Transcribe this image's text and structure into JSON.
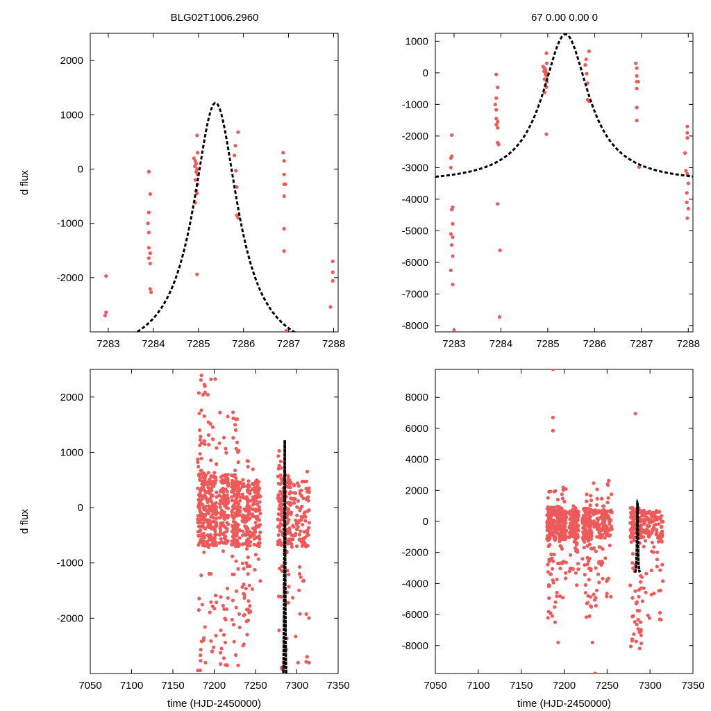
{
  "header": {
    "title_left": "BLG02T1006.2960",
    "title_right": "67  0.00  0.00  0"
  },
  "colors": {
    "data": "#ee5a5a",
    "model": "#000000",
    "frame": "#000000"
  },
  "chart_data": [
    {
      "id": "top-left",
      "type": "scatter",
      "xlabel": "",
      "ylabel": "d flux",
      "xlim": [
        7282.6,
        7288.1
      ],
      "ylim": [
        -3000,
        2500
      ],
      "xticks": [
        7283,
        7284,
        7285,
        7286,
        7287,
        7288
      ],
      "yticks": [
        -2000,
        -1000,
        0,
        1000,
        2000
      ],
      "points": [
        [
          7282.95,
          -1970
        ],
        [
          7282.95,
          -2640
        ],
        [
          7282.93,
          -2700
        ],
        [
          7283.9,
          -50
        ],
        [
          7283.93,
          -460
        ],
        [
          7283.9,
          -800
        ],
        [
          7283.88,
          -1000
        ],
        [
          7283.9,
          -1170
        ],
        [
          7283.9,
          -1450
        ],
        [
          7283.93,
          -1550
        ],
        [
          7283.9,
          -1640
        ],
        [
          7283.93,
          -1740
        ],
        [
          7283.93,
          -2210
        ],
        [
          7283.95,
          -2270
        ],
        [
          7284.9,
          200
        ],
        [
          7284.93,
          150
        ],
        [
          7284.95,
          100
        ],
        [
          7284.92,
          50
        ],
        [
          7284.97,
          0
        ],
        [
          7284.95,
          -50
        ],
        [
          7284.98,
          -100
        ],
        [
          7284.93,
          -200
        ],
        [
          7284.98,
          -280
        ],
        [
          7284.95,
          -400
        ],
        [
          7284.97,
          -450
        ],
        [
          7284.93,
          -620
        ],
        [
          7284.97,
          620
        ],
        [
          7284.98,
          300
        ],
        [
          7284.97,
          -1940
        ],
        [
          7285.88,
          680
        ],
        [
          7285.82,
          430
        ],
        [
          7285.8,
          250
        ],
        [
          7285.83,
          -30
        ],
        [
          7285.85,
          -330
        ],
        [
          7285.85,
          -850
        ],
        [
          7285.88,
          -900
        ],
        [
          7286.88,
          300
        ],
        [
          7286.9,
          150
        ],
        [
          7286.9,
          -100
        ],
        [
          7286.9,
          -280
        ],
        [
          7286.93,
          -280
        ],
        [
          7286.9,
          -500
        ],
        [
          7286.9,
          -1100
        ],
        [
          7286.9,
          -1510
        ],
        [
          7286.95,
          -2980
        ],
        [
          7287.98,
          -1700
        ],
        [
          7287.98,
          -1900
        ],
        [
          7287.98,
          -2060
        ],
        [
          7287.93,
          -2540
        ]
      ],
      "model": {
        "type": "lorentzian",
        "t0": 7285.38,
        "peak": 1220,
        "baseline": -3500,
        "width": 0.6,
        "x_range": [
          7282.6,
          7288.1
        ]
      }
    },
    {
      "id": "top-right",
      "type": "scatter",
      "xlabel": "",
      "ylabel": "",
      "xlim": [
        7282.6,
        7288.1
      ],
      "ylim": [
        -8200,
        1250
      ],
      "xticks": [
        7283,
        7284,
        7285,
        7286,
        7287,
        7288
      ],
      "yticks": [
        -8000,
        -7000,
        -6000,
        -5000,
        -4000,
        -3000,
        -2000,
        -1000,
        0,
        1000
      ],
      "points": [
        [
          7282.95,
          -1970
        ],
        [
          7282.95,
          -2640
        ],
        [
          7282.93,
          -2700
        ],
        [
          7282.93,
          -3000
        ],
        [
          7282.97,
          -4250
        ],
        [
          7282.95,
          -4330
        ],
        [
          7282.97,
          -4780
        ],
        [
          7282.93,
          -5100
        ],
        [
          7282.97,
          -5200
        ],
        [
          7282.95,
          -5450
        ],
        [
          7282.97,
          -5800
        ],
        [
          7282.93,
          -6250
        ],
        [
          7282.97,
          -6700
        ],
        [
          7283.0,
          -8150
        ],
        [
          7283.9,
          -50
        ],
        [
          7283.93,
          -460
        ],
        [
          7283.9,
          -800
        ],
        [
          7283.88,
          -1000
        ],
        [
          7283.9,
          -1170
        ],
        [
          7283.9,
          -1450
        ],
        [
          7283.93,
          -1550
        ],
        [
          7283.9,
          -1640
        ],
        [
          7283.93,
          -1740
        ],
        [
          7283.93,
          -2210
        ],
        [
          7283.95,
          -2270
        ],
        [
          7283.93,
          -4150
        ],
        [
          7283.98,
          -5620
        ],
        [
          7283.97,
          -7730
        ],
        [
          7284.9,
          200
        ],
        [
          7284.93,
          150
        ],
        [
          7284.95,
          100
        ],
        [
          7284.92,
          50
        ],
        [
          7284.97,
          0
        ],
        [
          7284.95,
          -50
        ],
        [
          7284.98,
          -100
        ],
        [
          7284.93,
          -200
        ],
        [
          7284.98,
          -280
        ],
        [
          7284.95,
          -400
        ],
        [
          7284.97,
          -450
        ],
        [
          7284.93,
          -620
        ],
        [
          7284.97,
          620
        ],
        [
          7284.98,
          300
        ],
        [
          7284.97,
          -1940
        ],
        [
          7285.88,
          680
        ],
        [
          7285.82,
          430
        ],
        [
          7285.8,
          250
        ],
        [
          7285.83,
          -30
        ],
        [
          7285.85,
          -330
        ],
        [
          7285.85,
          -850
        ],
        [
          7285.88,
          -900
        ],
        [
          7286.88,
          300
        ],
        [
          7286.9,
          150
        ],
        [
          7286.9,
          -100
        ],
        [
          7286.9,
          -280
        ],
        [
          7286.93,
          -280
        ],
        [
          7286.9,
          -500
        ],
        [
          7286.9,
          -1100
        ],
        [
          7286.9,
          -1510
        ],
        [
          7286.95,
          -2980
        ],
        [
          7287.98,
          -1700
        ],
        [
          7287.98,
          -1900
        ],
        [
          7287.98,
          -2060
        ],
        [
          7287.93,
          -2540
        ],
        [
          7287.95,
          -3100
        ],
        [
          7287.98,
          -3200
        ],
        [
          7288.0,
          -3500
        ],
        [
          7287.97,
          -3800
        ],
        [
          7287.97,
          -4100
        ],
        [
          7288.0,
          -4300
        ],
        [
          7287.98,
          -4600
        ]
      ],
      "model": {
        "type": "lorentzian",
        "t0": 7285.38,
        "peak": 1220,
        "baseline": -3500,
        "width": 0.6,
        "x_range": [
          7282.6,
          7288.1
        ]
      }
    },
    {
      "id": "bottom-left",
      "type": "scatter",
      "xlabel": "time (HJD-2450000)",
      "ylabel": "d flux",
      "xlim": [
        7050,
        7350
      ],
      "ylim": [
        -3000,
        2500
      ],
      "xticks": [
        7050,
        7100,
        7150,
        7200,
        7250,
        7300,
        7350
      ],
      "yticks": [
        -2000,
        -1000,
        0,
        1000,
        2000
      ],
      "seasons": [
        {
          "x_range": [
            7180,
            7190
          ],
          "y_core": [
            -700,
            700
          ],
          "y_tail": [
            -2950,
            2450
          ],
          "n": 150
        },
        {
          "x_range": [
            7191,
            7203
          ],
          "y_core": [
            -700,
            600
          ],
          "y_tail": [
            -2950,
            2400
          ],
          "n": 160
        },
        {
          "x_range": [
            7206,
            7217
          ],
          "y_core": [
            -650,
            600
          ],
          "y_tail": [
            -2900,
            1900
          ],
          "n": 130
        },
        {
          "x_range": [
            7221,
            7232
          ],
          "y_core": [
            -700,
            600
          ],
          "y_tail": [
            -2900,
            1750
          ],
          "n": 150
        },
        {
          "x_range": [
            7234,
            7244
          ],
          "y_core": [
            -700,
            600
          ],
          "y_tail": [
            -2500,
            1000
          ],
          "n": 120
        },
        {
          "x_range": [
            7246,
            7256
          ],
          "y_core": [
            -700,
            500
          ],
          "y_tail": [
            -1500,
            700
          ],
          "n": 90
        },
        {
          "x_range": [
            7277,
            7290
          ],
          "y_core": [
            -700,
            600
          ],
          "y_tail": [
            -2950,
            1100
          ],
          "n": 140
        },
        {
          "x_range": [
            7290,
            7315
          ],
          "y_core": [
            -700,
            500
          ],
          "y_tail": [
            -2900,
            700
          ],
          "n": 130
        }
      ],
      "model": {
        "type": "lorentzian",
        "t0": 7285.38,
        "peak": 1220,
        "baseline": -3500,
        "width": 0.6,
        "x_range": [
          7282.6,
          7288.1
        ]
      }
    },
    {
      "id": "bottom-right",
      "type": "scatter",
      "xlabel": "time (HJD-2450000)",
      "ylabel": "",
      "xlim": [
        7050,
        7350
      ],
      "ylim": [
        -9800,
        9800
      ],
      "xticks": [
        7050,
        7100,
        7150,
        7200,
        7250,
        7300,
        7350
      ],
      "yticks": [
        -8000,
        -6000,
        -4000,
        -2000,
        0,
        2000,
        4000,
        6000,
        8000
      ],
      "seasons": [
        {
          "x_range": [
            7180,
            7190
          ],
          "y_core": [
            -1200,
            900
          ],
          "y_tail": [
            -6500,
            2600
          ],
          "n": 140
        },
        {
          "x_range": [
            7191,
            7203
          ],
          "y_core": [
            -1200,
            800
          ],
          "y_tail": [
            -5200,
            2400
          ],
          "n": 140
        },
        {
          "x_range": [
            7206,
            7217
          ],
          "y_core": [
            -1100,
            800
          ],
          "y_tail": [
            -4200,
            1000
          ],
          "n": 110
        },
        {
          "x_range": [
            7221,
            7232
          ],
          "y_core": [
            -1200,
            900
          ],
          "y_tail": [
            -6400,
            1800
          ],
          "n": 140
        },
        {
          "x_range": [
            7234,
            7256
          ],
          "y_core": [
            -1100,
            800
          ],
          "y_tail": [
            -5500,
            2900
          ],
          "n": 160
        },
        {
          "x_range": [
            7277,
            7290
          ],
          "y_core": [
            -1100,
            900
          ],
          "y_tail": [
            -8200,
            1000
          ],
          "n": 140
        },
        {
          "x_range": [
            7290,
            7315
          ],
          "y_core": [
            -1100,
            700
          ],
          "y_tail": [
            -6500,
            700
          ],
          "n": 130
        }
      ],
      "extra_points": [
        [
          7187,
          9800
        ],
        [
          7187,
          6700
        ],
        [
          7187,
          5850
        ],
        [
          7283,
          6950
        ],
        [
          7193,
          -7800
        ],
        [
          7233,
          -7800
        ],
        [
          7236,
          -9800
        ]
      ],
      "model": {
        "type": "lorentzian",
        "t0": 7285.38,
        "peak": 1220,
        "baseline": -3500,
        "width": 0.6,
        "x_range": [
          7282.6,
          7288.1
        ]
      }
    }
  ]
}
